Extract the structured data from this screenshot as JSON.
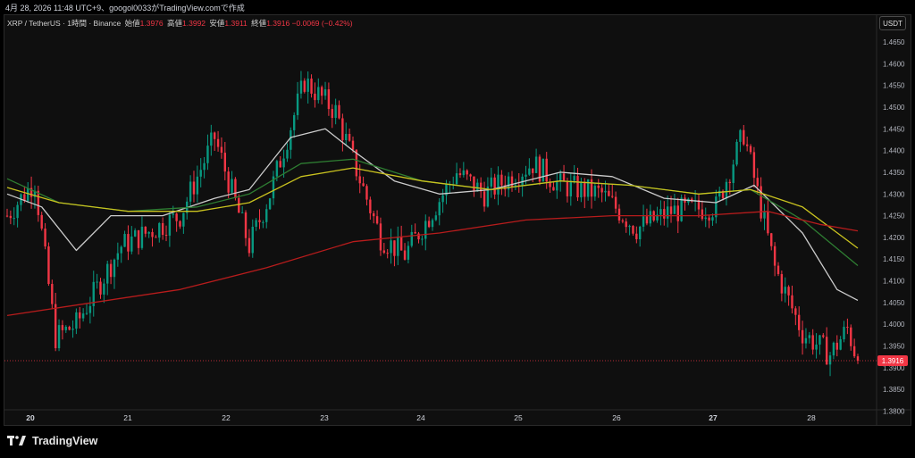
{
  "header": {
    "caption": "4月 28, 2026 11:48 UTC+9、googol0033がTradingView.comで作成"
  },
  "legend": {
    "symbol": "XRP / TetherUS · 1時間 · Binance",
    "open_label": "始値",
    "open": "1.3976",
    "high_label": "高値",
    "high": "1.3992",
    "low_label": "安値",
    "low": "1.3911",
    "close_label": "終値",
    "close": "1.3916",
    "change": "−0.0069 (−0.42%)"
  },
  "unit_label": "USDT",
  "brand": {
    "name": "TradingView",
    "icon": "tradingview-logo-icon"
  },
  "colors": {
    "up": "#089981",
    "down": "#f23645",
    "ma_white": "#cccccc",
    "ma_green": "#2e7d32",
    "ma_yellow": "#c9c21f",
    "ma_red": "#b71c1c",
    "price_line": "#f23645"
  },
  "chart_data": {
    "type": "candlestick",
    "title": "XRP / TetherUS · 1時間 · Binance",
    "ylim": [
      1.3805,
      1.4685
    ],
    "y_ticks": [
      "1.4650",
      "1.4600",
      "1.4550",
      "1.4500",
      "1.4450",
      "1.4400",
      "1.4350",
      "1.4300",
      "1.4250",
      "1.4200",
      "1.4150",
      "1.4100",
      "1.4050",
      "1.4000",
      "1.3950",
      "1.3900",
      "1.3850",
      "1.3800"
    ],
    "x_labels": [
      "20",
      "21",
      "22",
      "23",
      "24",
      "25",
      "26",
      "27",
      "28"
    ],
    "bold_x_labels": [
      "20",
      "27"
    ],
    "last_price": "1.3916",
    "grid": false,
    "key_points": [
      {
        "t": 0,
        "price": 1.425
      },
      {
        "t": 8,
        "price": 1.433
      },
      {
        "t": 14,
        "price": 1.397
      },
      {
        "t": 20,
        "price": 1.4
      },
      {
        "t": 33,
        "price": 1.418
      },
      {
        "t": 50,
        "price": 1.425
      },
      {
        "t": 60,
        "price": 1.443
      },
      {
        "t": 70,
        "price": 1.418
      },
      {
        "t": 76,
        "price": 1.43
      },
      {
        "t": 86,
        "price": 1.456
      },
      {
        "t": 95,
        "price": 1.449
      },
      {
        "t": 108,
        "price": 1.42
      },
      {
        "t": 115,
        "price": 1.416
      },
      {
        "t": 130,
        "price": 1.435
      },
      {
        "t": 138,
        "price": 1.43
      },
      {
        "t": 152,
        "price": 1.437
      },
      {
        "t": 160,
        "price": 1.432
      },
      {
        "t": 172,
        "price": 1.43
      },
      {
        "t": 182,
        "price": 1.422
      },
      {
        "t": 192,
        "price": 1.426
      },
      {
        "t": 205,
        "price": 1.427
      },
      {
        "t": 213,
        "price": 1.444
      },
      {
        "t": 222,
        "price": 1.413
      },
      {
        "t": 230,
        "price": 1.398
      },
      {
        "t": 238,
        "price": 1.393
      },
      {
        "t": 243,
        "price": 1.399
      },
      {
        "t": 246,
        "price": 1.3916
      }
    ],
    "moving_averages": [
      {
        "color": "#cccccc",
        "points": [
          {
            "t": 0,
            "price": 1.43
          },
          {
            "t": 10,
            "price": 1.427
          },
          {
            "t": 20,
            "price": 1.417
          },
          {
            "t": 30,
            "price": 1.425
          },
          {
            "t": 45,
            "price": 1.425
          },
          {
            "t": 60,
            "price": 1.429
          },
          {
            "t": 70,
            "price": 1.431
          },
          {
            "t": 82,
            "price": 1.443
          },
          {
            "t": 92,
            "price": 1.445
          },
          {
            "t": 100,
            "price": 1.44
          },
          {
            "t": 112,
            "price": 1.433
          },
          {
            "t": 125,
            "price": 1.43
          },
          {
            "t": 140,
            "price": 1.431
          },
          {
            "t": 160,
            "price": 1.435
          },
          {
            "t": 175,
            "price": 1.434
          },
          {
            "t": 190,
            "price": 1.429
          },
          {
            "t": 205,
            "price": 1.428
          },
          {
            "t": 216,
            "price": 1.432
          },
          {
            "t": 230,
            "price": 1.421
          },
          {
            "t": 240,
            "price": 1.408
          },
          {
            "t": 246,
            "price": 1.4055
          }
        ]
      },
      {
        "color": "#2e7d32",
        "points": [
          {
            "t": 0,
            "price": 1.4335
          },
          {
            "t": 15,
            "price": 1.428
          },
          {
            "t": 35,
            "price": 1.426
          },
          {
            "t": 55,
            "price": 1.427
          },
          {
            "t": 70,
            "price": 1.43
          },
          {
            "t": 85,
            "price": 1.437
          },
          {
            "t": 100,
            "price": 1.438
          },
          {
            "t": 120,
            "price": 1.433
          },
          {
            "t": 140,
            "price": 1.431
          },
          {
            "t": 160,
            "price": 1.433
          },
          {
            "t": 180,
            "price": 1.432
          },
          {
            "t": 200,
            "price": 1.43
          },
          {
            "t": 215,
            "price": 1.431
          },
          {
            "t": 230,
            "price": 1.424
          },
          {
            "t": 246,
            "price": 1.4135
          }
        ]
      },
      {
        "color": "#c9c21f",
        "points": [
          {
            "t": 0,
            "price": 1.4315
          },
          {
            "t": 15,
            "price": 1.428
          },
          {
            "t": 35,
            "price": 1.426
          },
          {
            "t": 55,
            "price": 1.426
          },
          {
            "t": 70,
            "price": 1.428
          },
          {
            "t": 85,
            "price": 1.434
          },
          {
            "t": 100,
            "price": 1.436
          },
          {
            "t": 120,
            "price": 1.433
          },
          {
            "t": 140,
            "price": 1.431
          },
          {
            "t": 160,
            "price": 1.433
          },
          {
            "t": 180,
            "price": 1.432
          },
          {
            "t": 200,
            "price": 1.43
          },
          {
            "t": 215,
            "price": 1.431
          },
          {
            "t": 230,
            "price": 1.427
          },
          {
            "t": 246,
            "price": 1.4175
          }
        ]
      },
      {
        "color": "#b71c1c",
        "points": [
          {
            "t": 0,
            "price": 1.402
          },
          {
            "t": 25,
            "price": 1.405
          },
          {
            "t": 50,
            "price": 1.408
          },
          {
            "t": 75,
            "price": 1.413
          },
          {
            "t": 100,
            "price": 1.419
          },
          {
            "t": 125,
            "price": 1.421
          },
          {
            "t": 150,
            "price": 1.424
          },
          {
            "t": 175,
            "price": 1.425
          },
          {
            "t": 200,
            "price": 1.425
          },
          {
            "t": 220,
            "price": 1.426
          },
          {
            "t": 235,
            "price": 1.423
          },
          {
            "t": 246,
            "price": 1.4215
          }
        ]
      }
    ]
  }
}
